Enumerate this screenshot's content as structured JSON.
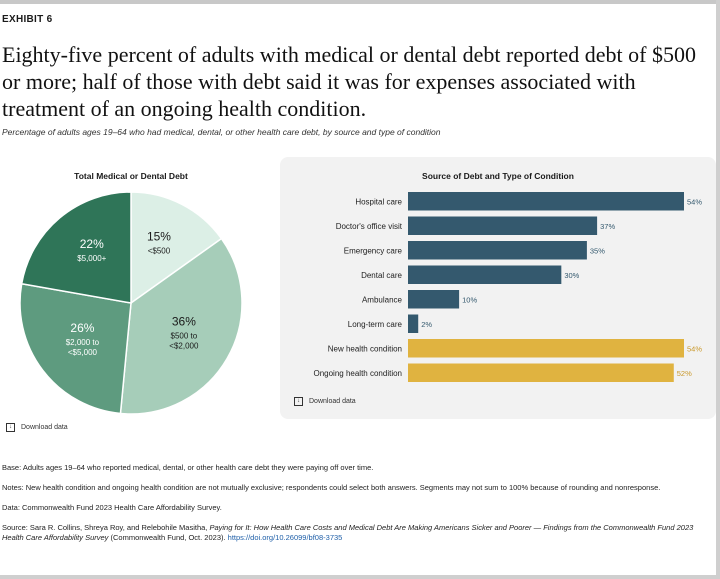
{
  "exhibit": "EXHIBIT 6",
  "headline": "Eighty-five percent of adults with medical or dental debt reported debt of $500 or more; half of those with debt said it was for expenses associated with treatment of an ongoing health condition.",
  "subtitle": "Percentage of adults ages 19–64 who had medical, dental, or other health care debt, by source and type of condition",
  "download_label": "Download data",
  "chart_data": [
    {
      "type": "pie",
      "title": "Total Medical or Dental Debt",
      "slices": [
        {
          "pct": "15%",
          "label": "<$500",
          "value": 15,
          "color": "#dcefe6"
        },
        {
          "pct": "36%",
          "label": "$500 to <$2,000",
          "value": 36,
          "color": "#a6cdb9"
        },
        {
          "pct": "26%",
          "label": "$2,000 to <$5,000",
          "value": 26,
          "color": "#5e9b7f"
        },
        {
          "pct": "22%",
          "label": "$5,000+",
          "value": 22,
          "color": "#2f7558"
        }
      ]
    },
    {
      "type": "bar",
      "title": "Source of Debt and Type of Condition",
      "categories": [
        "Hospital care",
        "Doctor's office visit",
        "Emergency care",
        "Dental care",
        "Ambulance",
        "Long-term care",
        "New health condition",
        "Ongoing health condition"
      ],
      "values": [
        54,
        37,
        35,
        30,
        10,
        2,
        54,
        52
      ],
      "value_labels": [
        "54%",
        "37%",
        "35%",
        "30%",
        "10%",
        "2%",
        "54%",
        "52%"
      ],
      "colors": [
        "#34596e",
        "#34596e",
        "#34596e",
        "#34596e",
        "#34596e",
        "#34596e",
        "#e0b340",
        "#e0b340"
      ],
      "label_colors": [
        "#34596e",
        "#34596e",
        "#34596e",
        "#34596e",
        "#34596e",
        "#34596e",
        "#c9982a",
        "#c9982a"
      ],
      "xlim": [
        0,
        54
      ]
    }
  ],
  "notes": {
    "base": "Base: Adults ages 19–64 who reported medical, dental, or other health care debt they were paying off over time.",
    "notes": "Notes: New health condition and ongoing health condition are not mutually exclusive; respondents could select both answers. Segments may not sum to 100% because of rounding and nonresponse.",
    "data": "Data: Commonwealth Fund 2023 Health Care Affordability Survey.",
    "source_prefix": "Source: Sara R. Collins, Shreya Roy, and Relebohile Masitha, ",
    "source_title": "Paying for It: How Health Care Costs and Medical Debt Are Making Americans Sicker and Poorer — Findings from the Commonwealth Fund 2023 Health Care Affordability Survey",
    "source_suffix": " (Commonwealth Fund, Oct. 2023). ",
    "source_link": "https://doi.org/10.26099/bf08-3735"
  }
}
